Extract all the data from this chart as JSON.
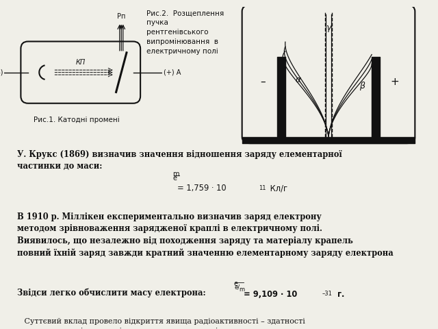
{
  "bg_color": "#f0efe8",
  "title1": "Рис.1. Катодні промені",
  "title2_lines": [
    "Рис.2.  Розщеплення",
    "пучка",
    "рентгенівського",
    "випромінювання  в",
    "електричному полі"
  ],
  "text_blocks": [
    "У. Крукс (1869) визначив значення відношення заряду елементарної\nчастинки до маси:",
    "В 1910 р. Міллікен експериментально визначив заряд електрону\nметодом зрівноваження зарядженої краплі в електричному полі.\nВиявилось, що незалежно від походження заряду та матеріалу крапель\nповний їхній заряд завжди кратний значенню елементарному заряду електрона",
    "Звідси легко обчислити масу електрона:",
    "   Суттєвий вклад провело відкриття явища радіоактивності – здатності\nдеяких елементів випромінювати невидиме проміння, яке проникає\nкрізь речовини іонізує гази, засвічує фотоплівку. Такі елементи\nназивають радіоактивними."
  ],
  "line_color": "#111111",
  "text_color": "#111111"
}
